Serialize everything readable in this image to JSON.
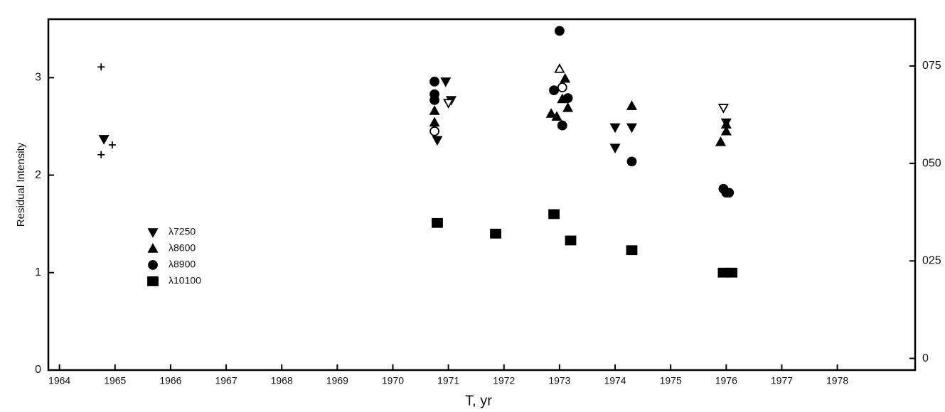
{
  "chart_data": {
    "type": "scatter",
    "xlabel": "T, yr",
    "ylabel": "Residual Intensity",
    "xlim": [
      1963.8,
      1979.4
    ],
    "xticks": [
      1964,
      1965,
      1966,
      1967,
      1968,
      1969,
      1970,
      1971,
      1972,
      1973,
      1974,
      1975,
      1976,
      1977,
      1978
    ],
    "ylim": [
      0,
      3.6
    ],
    "yticks": [
      0,
      1,
      2,
      3
    ],
    "y2lim": [
      -0.003,
      0.087
    ],
    "y2ticks": [
      0,
      {
        "value": 0.025,
        "label": "025"
      },
      {
        "value": 0.05,
        "label": "050"
      },
      {
        "value": 0.075,
        "label": "075"
      }
    ],
    "grid": false,
    "legend_position": "center left",
    "series": [
      {
        "name": "λ7250",
        "marker": "tri-down",
        "filled": true,
        "color": "#000000",
        "x": [
          1964.8,
          1970.8,
          1970.95,
          1971.05,
          1974.0,
          1974.0,
          1974.3,
          1976.0
        ],
        "values": [
          2.37,
          2.36,
          2.96,
          2.77,
          2.49,
          2.28,
          2.49,
          2.54
        ]
      },
      {
        "name": "λ8600",
        "marker": "tri-up",
        "filled": true,
        "color": "#000000",
        "x": [
          1970.75,
          1970.75,
          1972.85,
          1972.95,
          1973.05,
          1973.1,
          1973.15,
          1974.3,
          1975.9,
          1976.0,
          1976.0
        ],
        "values": [
          2.66,
          2.54,
          2.63,
          2.6,
          2.78,
          2.99,
          2.69,
          2.71,
          2.34,
          2.45,
          2.52
        ]
      },
      {
        "name": "λ8900",
        "marker": "circle",
        "filled": true,
        "color": "#000000",
        "x": [
          1970.75,
          1970.75,
          1970.75,
          1972.9,
          1973.0,
          1973.05,
          1973.15,
          1974.3,
          1975.95,
          1976.0,
          1976.05
        ],
        "values": [
          2.96,
          2.83,
          2.77,
          2.87,
          3.48,
          2.51,
          2.79,
          2.14,
          1.86,
          1.82,
          1.82
        ]
      },
      {
        "name": "λ10100",
        "marker": "square",
        "filled": true,
        "color": "#000000",
        "x": [
          1970.8,
          1971.85,
          1972.9,
          1973.2,
          1974.3,
          1975.95,
          1976.1
        ],
        "values": [
          1.51,
          1.4,
          1.6,
          1.33,
          1.23,
          1.0,
          1.0
        ]
      },
      {
        "marker": "plus",
        "filled": true,
        "color": "#000000",
        "x": [
          1964.75,
          1964.75,
          1964.95
        ],
        "values": [
          3.11,
          2.21,
          2.31
        ]
      },
      {
        "marker": "tri-down",
        "filled": false,
        "color": "#000000",
        "x": [
          1971.0,
          1975.95
        ],
        "values": [
          2.74,
          2.69
        ]
      },
      {
        "marker": "tri-up",
        "filled": false,
        "color": "#000000",
        "x": [
          1973.0
        ],
        "values": [
          3.09
        ]
      },
      {
        "marker": "circle",
        "filled": false,
        "color": "#000000",
        "x": [
          1970.75,
          1973.05
        ],
        "values": [
          2.45,
          2.9
        ]
      }
    ]
  }
}
